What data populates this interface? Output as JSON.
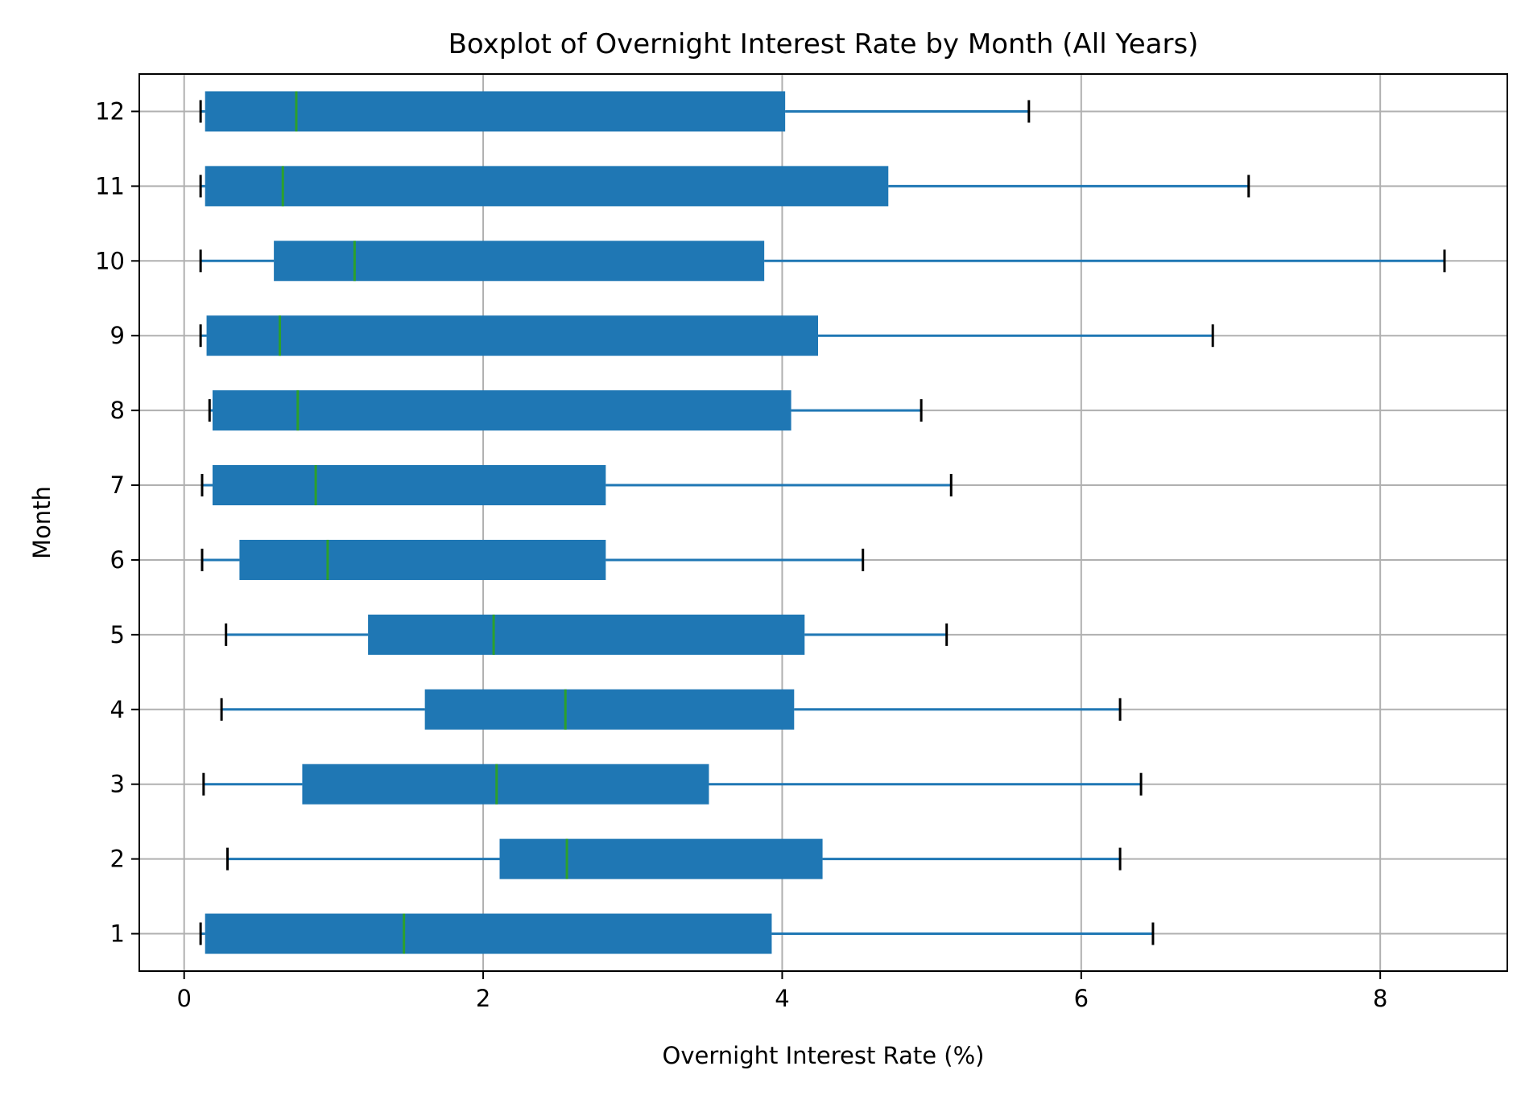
{
  "chart_data": {
    "type": "boxplot",
    "orientation": "horizontal",
    "title": "Boxplot of Overnight Interest Rate by Month (All Years)",
    "xlabel": "Overnight Interest Rate (%)",
    "ylabel": "Month",
    "xlim": [
      -0.3,
      8.85
    ],
    "xticks": [
      0,
      2,
      4,
      6,
      8
    ],
    "ylim": [
      0.5,
      12.5
    ],
    "yticks": [
      1,
      2,
      3,
      4,
      5,
      6,
      7,
      8,
      9,
      10,
      11,
      12
    ],
    "grid": true,
    "colors": {
      "box": "#1f77b4",
      "median": "#2ca02c",
      "caps": "#000000",
      "grid": "#b0b0b0"
    },
    "boxes": [
      {
        "month": 1,
        "whisker_low": 0.11,
        "q1": 0.14,
        "median": 1.47,
        "q3": 3.93,
        "whisker_high": 6.48
      },
      {
        "month": 2,
        "whisker_low": 0.29,
        "q1": 2.11,
        "median": 2.56,
        "q3": 4.27,
        "whisker_high": 6.26
      },
      {
        "month": 3,
        "whisker_low": 0.13,
        "q1": 0.79,
        "median": 2.09,
        "q3": 3.51,
        "whisker_high": 6.4
      },
      {
        "month": 4,
        "whisker_low": 0.25,
        "q1": 1.61,
        "median": 2.55,
        "q3": 4.08,
        "whisker_high": 6.26
      },
      {
        "month": 5,
        "whisker_low": 0.28,
        "q1": 1.23,
        "median": 2.07,
        "q3": 4.15,
        "whisker_high": 5.1
      },
      {
        "month": 6,
        "whisker_low": 0.12,
        "q1": 0.37,
        "median": 0.96,
        "q3": 2.82,
        "whisker_high": 4.54
      },
      {
        "month": 7,
        "whisker_low": 0.12,
        "q1": 0.19,
        "median": 0.88,
        "q3": 2.82,
        "whisker_high": 5.13
      },
      {
        "month": 8,
        "whisker_low": 0.17,
        "q1": 0.19,
        "median": 0.76,
        "q3": 4.06,
        "whisker_high": 4.93
      },
      {
        "month": 9,
        "whisker_low": 0.11,
        "q1": 0.15,
        "median": 0.64,
        "q3": 4.24,
        "whisker_high": 6.88
      },
      {
        "month": 10,
        "whisker_low": 0.11,
        "q1": 0.6,
        "median": 1.14,
        "q3": 3.88,
        "whisker_high": 8.43
      },
      {
        "month": 11,
        "whisker_low": 0.11,
        "q1": 0.14,
        "median": 0.66,
        "q3": 4.71,
        "whisker_high": 7.12
      },
      {
        "month": 12,
        "whisker_low": 0.11,
        "q1": 0.14,
        "median": 0.75,
        "q3": 4.02,
        "whisker_high": 5.65
      }
    ]
  }
}
